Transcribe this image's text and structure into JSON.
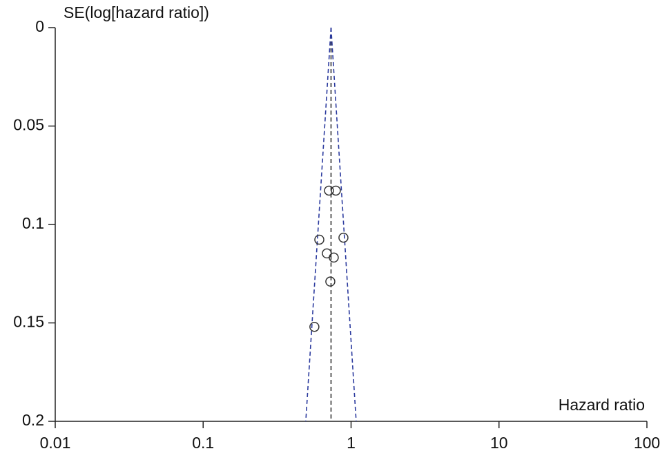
{
  "chart_data": {
    "type": "scatter",
    "ylabel": "SE(log[hazard ratio])",
    "xlabel": "Hazard ratio",
    "xscale": "log",
    "y_inverted": true,
    "xlim": [
      0.01,
      100
    ],
    "xticks": [
      0.01,
      0.1,
      1,
      10,
      100
    ],
    "ylim": [
      0,
      0.2
    ],
    "yticks": [
      0,
      0.05,
      0.1,
      0.15,
      0.2
    ],
    "series": [
      {
        "name": null,
        "color": "#333333",
        "x": [
          0.709,
          0.789,
          0.61,
          0.888,
          0.686,
          0.764,
          0.724,
          0.565
        ],
        "values": [
          0.0828,
          0.0828,
          0.1077,
          0.1067,
          0.1147,
          0.1168,
          0.129,
          0.152
        ]
      }
    ],
    "lines": [
      {
        "color": "#333333",
        "x": [
          0.732,
          0.732
        ],
        "y": [
          0,
          0.2
        ]
      },
      {
        "color": "#2b3a9e",
        "x": [
          0.732,
          0.494
        ],
        "y": [
          0,
          0.2
        ]
      },
      {
        "color": "#2b3a9e",
        "x": [
          0.732,
          1.083
        ],
        "y": [
          0,
          0.2
        ]
      }
    ]
  }
}
